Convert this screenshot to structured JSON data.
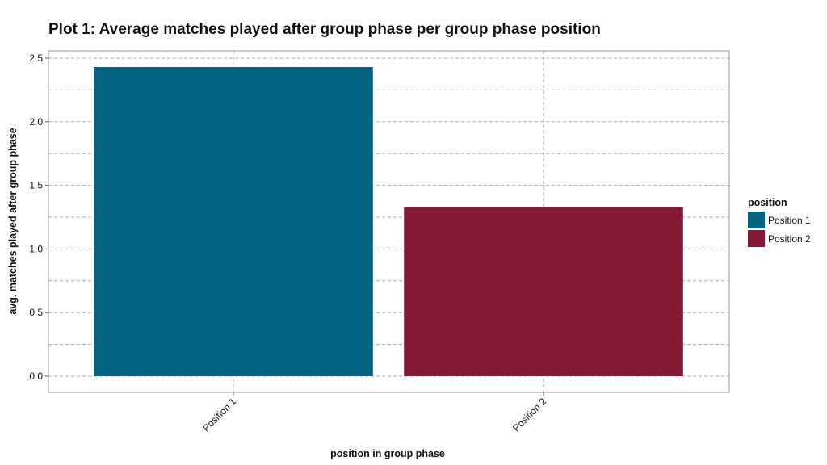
{
  "chart_data": {
    "type": "bar",
    "title": "Plot 1: Average matches played after group phase per group phase position",
    "xlabel": "position in group phase",
    "ylabel": "avg. matches played after group phase",
    "categories": [
      "Position 1",
      "Position 2"
    ],
    "values": [
      2.43,
      1.33
    ],
    "colors": [
      "#056482",
      "#841a35"
    ],
    "ylim": [
      0,
      2.55
    ],
    "yticks": [
      0.0,
      0.5,
      1.0,
      1.5,
      2.0,
      2.5
    ],
    "ytick_labels": [
      "0.0",
      "0.5",
      "1.0",
      "1.5",
      "2.0",
      "2.5"
    ],
    "grid": true,
    "legend": {
      "title": "position",
      "placement": "right",
      "entries": [
        "Position 1",
        "Position 2"
      ]
    }
  }
}
